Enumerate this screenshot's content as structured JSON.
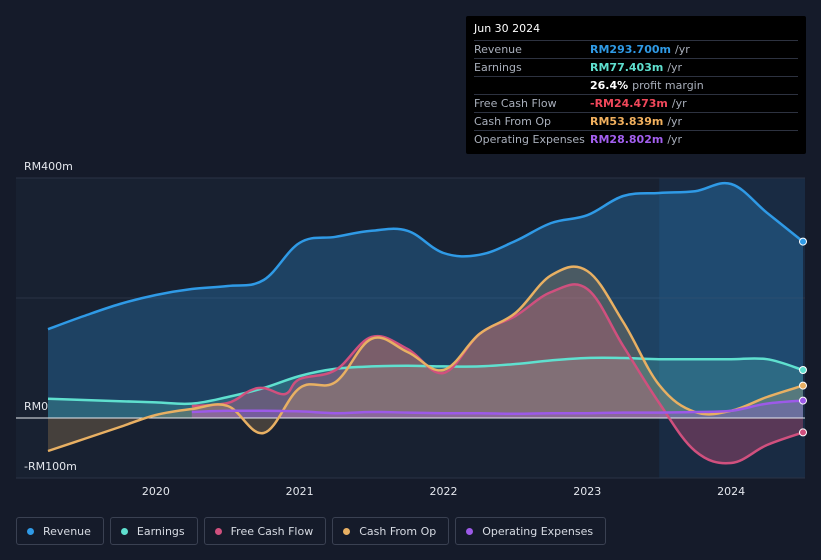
{
  "tooltip": {
    "date": "Jun 30 2024",
    "rows": [
      {
        "label": "Revenue",
        "value": "RM293.700m",
        "unit": "/yr",
        "color": "#2f9ae6"
      },
      {
        "label": "Earnings",
        "value": "RM77.403m",
        "unit": "/yr",
        "color": "#5fe0cf"
      },
      {
        "label": "",
        "value": "26.4%",
        "unit": "profit margin",
        "color": "#ffffff"
      },
      {
        "label": "Free Cash Flow",
        "value": "-RM24.473m",
        "unit": "/yr",
        "color": "#f0475a"
      },
      {
        "label": "Cash From Op",
        "value": "RM53.839m",
        "unit": "/yr",
        "color": "#f1b05e"
      },
      {
        "label": "Operating Expenses",
        "value": "RM28.802m",
        "unit": "/yr",
        "color": "#a35ff0"
      }
    ]
  },
  "legend": [
    {
      "label": "Revenue",
      "color": "#2f9ae6"
    },
    {
      "label": "Earnings",
      "color": "#5fe0cf"
    },
    {
      "label": "Free Cash Flow",
      "color": "#d0507e"
    },
    {
      "label": "Cash From Op",
      "color": "#e8b063"
    },
    {
      "label": "Operating Expenses",
      "color": "#9c5ae8"
    }
  ],
  "chart_data": {
    "type": "area",
    "y_tick_labels": [
      "RM400m",
      "RM0",
      "-RM100m"
    ],
    "y_ticks": [
      400,
      0,
      -100
    ],
    "ylim": [
      -100,
      400
    ],
    "xlim": [
      2019.25,
      2024.5
    ],
    "x_tick_labels": [
      "2020",
      "2021",
      "2022",
      "2023",
      "2024"
    ],
    "x_ticks": [
      2020,
      2021,
      2022,
      2023,
      2024
    ],
    "highlight_range": [
      2023.5,
      2024.5
    ],
    "grid": true,
    "series": [
      {
        "name": "Revenue",
        "color": "#2f9ae6",
        "fill": true,
        "x": [
          2019.25,
          2019.5,
          2019.75,
          2020.0,
          2020.25,
          2020.5,
          2020.75,
          2021.0,
          2021.25,
          2021.5,
          2021.75,
          2022.0,
          2022.25,
          2022.5,
          2022.75,
          2023.0,
          2023.25,
          2023.5,
          2023.75,
          2024.0,
          2024.25,
          2024.5
        ],
        "y": [
          148,
          170,
          190,
          205,
          215,
          220,
          230,
          292,
          302,
          312,
          312,
          275,
          272,
          295,
          325,
          338,
          370,
          375,
          378,
          390,
          342,
          294
        ]
      },
      {
        "name": "Earnings",
        "color": "#5fe0cf",
        "fill": true,
        "x": [
          2019.25,
          2019.5,
          2019.75,
          2020.0,
          2020.25,
          2020.5,
          2020.75,
          2021.0,
          2021.25,
          2021.5,
          2021.75,
          2022.0,
          2022.25,
          2022.5,
          2022.75,
          2023.0,
          2023.25,
          2023.5,
          2023.75,
          2024.0,
          2024.25,
          2024.5
        ],
        "y": [
          32,
          30,
          28,
          26,
          24,
          35,
          50,
          70,
          82,
          86,
          87,
          86,
          86,
          90,
          96,
          100,
          100,
          98,
          98,
          98,
          98,
          80
        ]
      },
      {
        "name": "Free Cash Flow",
        "color": "#d0507e",
        "fill": true,
        "x": [
          2020.25,
          2020.5,
          2020.65,
          2020.75,
          2020.9,
          2021.0,
          2021.25,
          2021.5,
          2021.75,
          2022.0,
          2022.25,
          2022.5,
          2022.75,
          2023.0,
          2023.25,
          2023.5,
          2023.75,
          2024.0,
          2024.25,
          2024.5
        ],
        "y": [
          20,
          25,
          45,
          50,
          40,
          65,
          80,
          135,
          115,
          75,
          140,
          170,
          210,
          215,
          120,
          25,
          -55,
          -75,
          -45,
          -24
        ]
      },
      {
        "name": "Cash From Op",
        "color": "#e8b063",
        "fill": true,
        "x": [
          2019.25,
          2019.5,
          2019.75,
          2020.0,
          2020.25,
          2020.5,
          2020.75,
          2021.0,
          2021.25,
          2021.5,
          2021.75,
          2022.0,
          2022.25,
          2022.5,
          2022.75,
          2023.0,
          2023.25,
          2023.5,
          2023.75,
          2024.0,
          2024.25,
          2024.5
        ],
        "y": [
          -55,
          -35,
          -15,
          5,
          15,
          20,
          -25,
          50,
          60,
          132,
          110,
          80,
          140,
          175,
          238,
          245,
          160,
          55,
          10,
          12,
          35,
          54
        ]
      },
      {
        "name": "Operating Expenses",
        "color": "#9c5ae8",
        "fill": true,
        "x": [
          2020.25,
          2020.5,
          2020.75,
          2021.0,
          2021.25,
          2021.5,
          2021.75,
          2022.0,
          2022.25,
          2022.5,
          2022.75,
          2023.0,
          2023.25,
          2023.5,
          2023.75,
          2024.0,
          2024.25,
          2024.5
        ],
        "y": [
          10,
          12,
          12,
          11,
          8,
          10,
          9,
          8,
          8,
          7,
          8,
          8,
          9,
          9,
          10,
          12,
          24,
          29
        ]
      }
    ]
  }
}
